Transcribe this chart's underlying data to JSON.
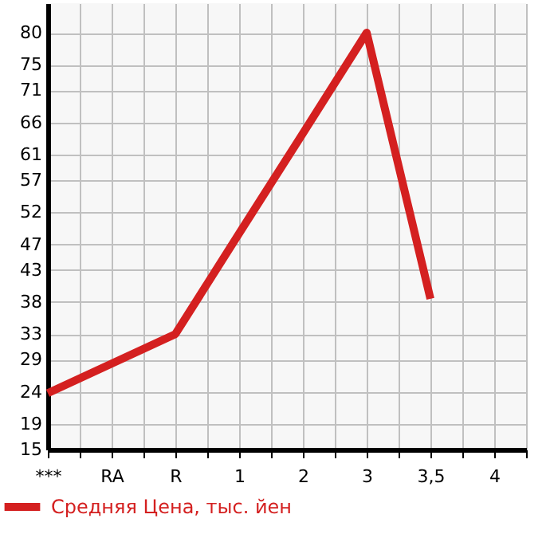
{
  "chart_data": {
    "type": "line",
    "categories": [
      "***",
      "RA",
      "R",
      "1",
      "2",
      "3",
      "3,5",
      "4"
    ],
    "series": [
      {
        "name": "Средняя Цена, тыс. йен",
        "color": "#d42020",
        "values": [
          23.8,
          28.4,
          33,
          48.7,
          64.3,
          80,
          38.5,
          null
        ]
      }
    ],
    "ylim": [
      15,
      84.6
    ],
    "yticks": [
      15,
      19,
      24,
      29,
      33,
      38,
      43,
      47,
      52,
      57,
      61,
      66,
      71,
      75,
      80
    ],
    "grid": true,
    "legend": "bottom left",
    "marker": "none",
    "line_style": "solid"
  }
}
